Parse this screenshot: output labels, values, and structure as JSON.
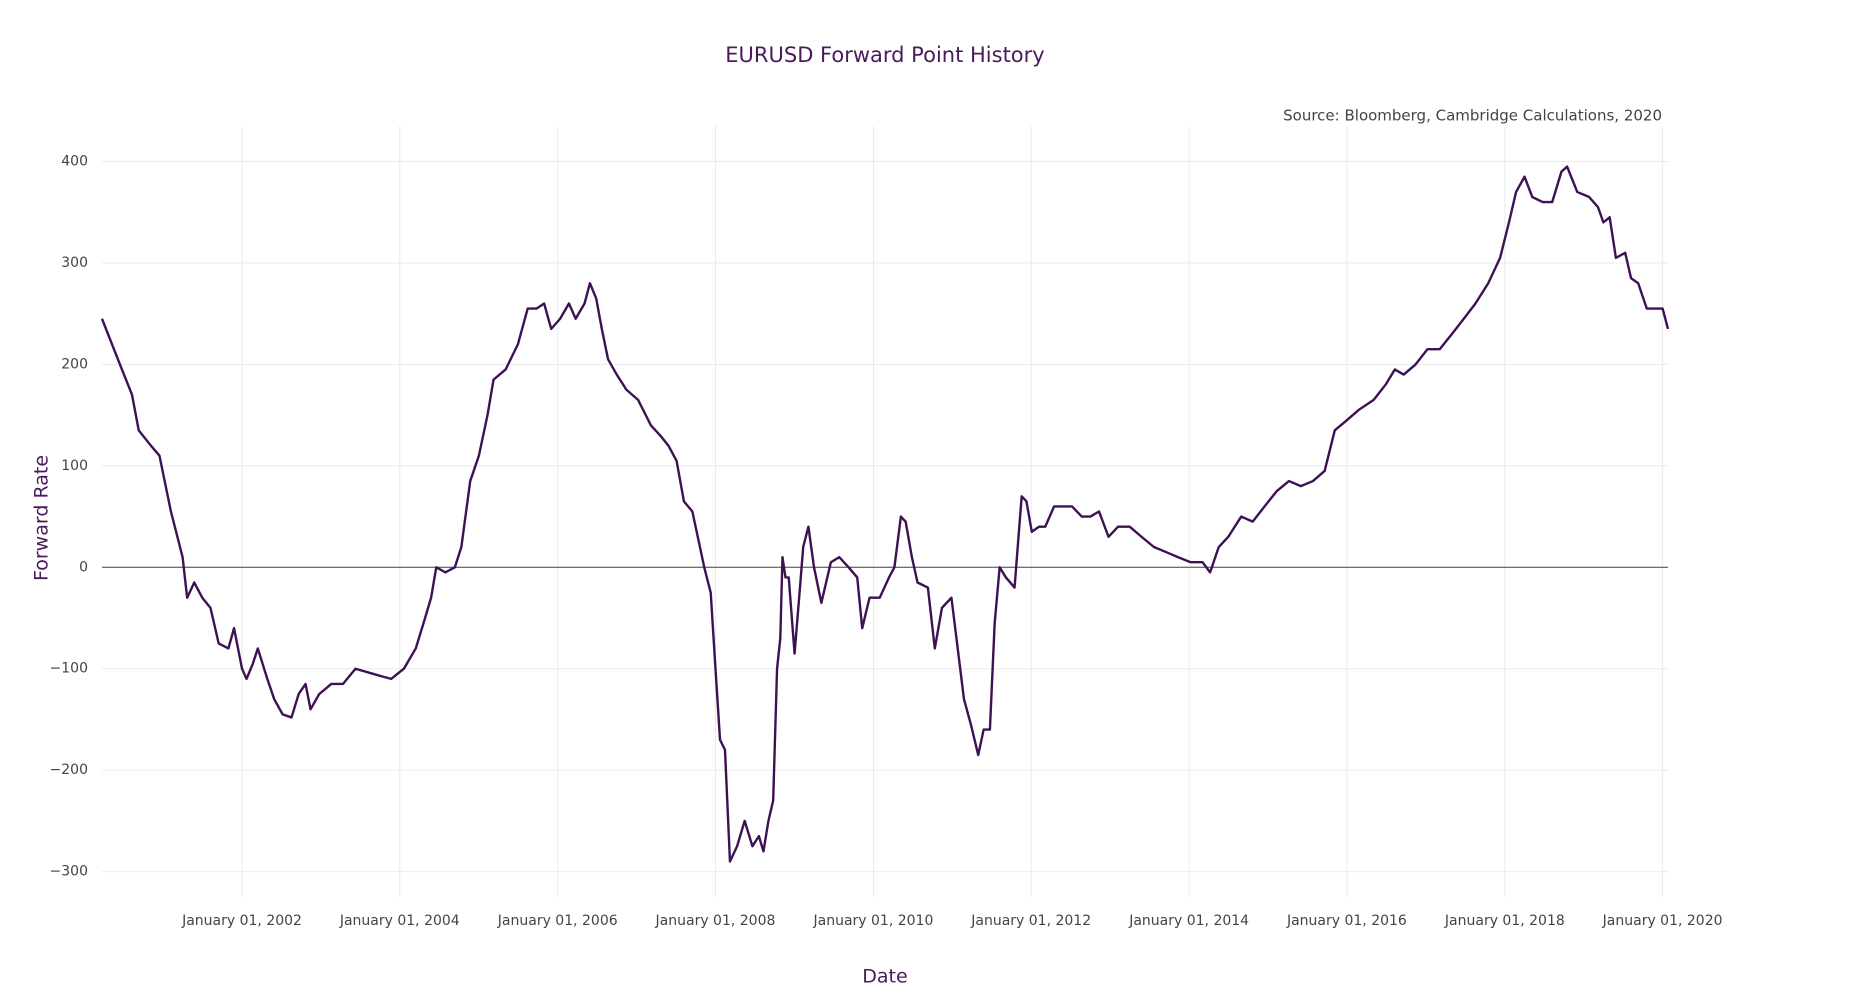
{
  "chart_data": {
    "type": "line",
    "title": "EURUSD Forward Point History",
    "annotation": "Source: Bloomberg, Cambridge Calculations, 2020",
    "x_label": "Date",
    "y_label": "Forward Rate",
    "grid": true,
    "zeroline": true,
    "xlim": [
      "2000-03-24",
      "2020-01-26"
    ],
    "xticks": [
      {
        "value": "2002-01-01",
        "label": "January 01, 2002"
      },
      {
        "value": "2004-01-01",
        "label": "January 01, 2004"
      },
      {
        "value": "2006-01-01",
        "label": "January 01, 2006"
      },
      {
        "value": "2008-01-01",
        "label": "January 01, 2008"
      },
      {
        "value": "2010-01-01",
        "label": "January 01, 2010"
      },
      {
        "value": "2012-01-01",
        "label": "January 01, 2012"
      },
      {
        "value": "2014-01-01",
        "label": "January 01, 2014"
      },
      {
        "value": "2016-01-01",
        "label": "January 01, 2016"
      },
      {
        "value": "2018-01-01",
        "label": "January 01, 2018"
      },
      {
        "value": "2020-01-01",
        "label": "January 01, 2020"
      }
    ],
    "ylim": [
      -325,
      435
    ],
    "yticks": [
      {
        "value": -300,
        "label": "−300"
      },
      {
        "value": -200,
        "label": "−200"
      },
      {
        "value": -100,
        "label": "−100"
      },
      0,
      100,
      200,
      300,
      400
    ],
    "x": [
      "2000-03-24",
      "2000-06-15",
      "2000-08-10",
      "2000-09-10",
      "2000-11-05",
      "2000-12-15",
      "2001-01-08",
      "2001-02-06",
      "2001-03-08",
      "2001-04-01",
      "2001-04-22",
      "2001-05-25",
      "2001-07-01",
      "2001-08-08",
      "2001-09-15",
      "2001-10-30",
      "2001-11-25",
      "2002-01-01",
      "2002-01-22",
      "2002-02-20",
      "2002-03-15",
      "2002-04-28",
      "2002-05-30",
      "2002-07-08",
      "2002-08-18",
      "2002-09-20",
      "2002-10-22",
      "2002-11-14",
      "2002-12-24",
      "2003-02-18",
      "2003-04-13",
      "2003-06-10",
      "2003-08-30",
      "2003-11-22",
      "2004-01-20",
      "2004-03-15",
      "2004-04-20",
      "2004-05-25",
      "2004-06-18",
      "2004-07-30",
      "2004-09-12",
      "2004-10-12",
      "2004-11-22",
      "2005-01-01",
      "2005-02-10",
      "2005-03-10",
      "2005-05-05",
      "2005-07-01",
      "2005-08-15",
      "2005-09-25",
      "2005-10-30",
      "2005-12-02",
      "2006-01-12",
      "2006-02-22",
      "2006-03-25",
      "2006-05-05",
      "2006-05-30",
      "2006-06-28",
      "2006-07-24",
      "2006-08-22",
      "2006-10-01",
      "2006-11-15",
      "2007-01-08",
      "2007-03-08",
      "2007-04-20",
      "2007-05-28",
      "2007-07-05",
      "2007-08-08",
      "2007-09-16",
      "2007-10-16",
      "2007-11-10",
      "2007-12-10",
      "2008-01-01",
      "2008-01-22",
      "2008-02-14",
      "2008-03-08",
      "2008-04-10",
      "2008-05-15",
      "2008-06-20",
      "2008-07-20",
      "2008-08-10",
      "2008-09-02",
      "2008-09-24",
      "2008-10-12",
      "2008-10-27",
      "2008-11-06",
      "2008-11-20",
      "2008-12-05",
      "2009-01-01",
      "2009-01-26",
      "2009-02-10",
      "2009-03-06",
      "2009-04-01",
      "2009-05-05",
      "2009-06-18",
      "2009-07-27",
      "2009-09-08",
      "2009-10-18",
      "2009-11-10",
      "2009-12-14",
      "2010-01-30",
      "2010-03-14",
      "2010-04-08",
      "2010-05-08",
      "2010-05-30",
      "2010-06-28",
      "2010-07-24",
      "2010-09-10",
      "2010-10-12",
      "2010-11-14",
      "2010-12-28",
      "2011-01-26",
      "2011-02-24",
      "2011-03-28",
      "2011-05-01",
      "2011-05-26",
      "2011-06-24",
      "2011-07-16",
      "2011-08-08",
      "2011-09-06",
      "2011-10-16",
      "2011-11-18",
      "2011-12-10",
      "2012-01-04",
      "2012-02-06",
      "2012-03-06",
      "2012-04-16",
      "2012-05-22",
      "2012-07-08",
      "2012-08-22",
      "2012-10-01",
      "2012-11-10",
      "2012-12-24",
      "2013-02-06",
      "2013-04-01",
      "2013-05-26",
      "2013-07-22",
      "2013-09-16",
      "2013-11-10",
      "2014-01-08",
      "2014-03-04",
      "2014-04-08",
      "2014-05-18",
      "2014-07-01",
      "2014-08-30",
      "2014-10-22",
      "2014-12-16",
      "2015-02-10",
      "2015-04-08",
      "2015-06-02",
      "2015-07-28",
      "2015-09-20",
      "2015-11-06",
      "2016-01-01",
      "2016-02-24",
      "2016-05-04",
      "2016-06-28",
      "2016-08-10",
      "2016-09-20",
      "2016-11-14",
      "2017-01-08",
      "2017-03-06",
      "2017-05-01",
      "2017-06-25",
      "2017-08-18",
      "2017-10-16",
      "2017-12-10",
      "2018-01-20",
      "2018-02-22",
      "2018-04-02",
      "2018-05-08",
      "2018-06-25",
      "2018-08-08",
      "2018-09-20",
      "2018-10-16",
      "2018-12-02",
      "2019-01-26",
      "2019-03-08",
      "2019-04-02",
      "2019-05-01",
      "2019-05-30",
      "2019-07-12",
      "2019-08-08",
      "2019-09-10",
      "2019-10-20",
      "2019-11-26",
      "2020-01-01",
      "2020-01-26"
    ],
    "series": [
      {
        "name": "EURUSD",
        "color": "#3d1152",
        "values": [
          245,
          200,
          170,
          135,
          120,
          110,
          85,
          55,
          30,
          10,
          -30,
          -15,
          -30,
          -40,
          -75,
          -80,
          -60,
          -100,
          -110,
          -95,
          -80,
          -110,
          -130,
          -145,
          -148,
          -125,
          -115,
          -140,
          -125,
          -115,
          -115,
          -100,
          -105,
          -110,
          -100,
          -80,
          -55,
          -30,
          0,
          -5,
          0,
          20,
          85,
          110,
          150,
          185,
          195,
          220,
          255,
          255,
          260,
          235,
          245,
          260,
          245,
          260,
          280,
          265,
          235,
          205,
          190,
          175,
          165,
          140,
          130,
          120,
          105,
          65,
          55,
          25,
          0,
          -25,
          -100,
          -170,
          -180,
          -290,
          -275,
          -250,
          -275,
          -265,
          -280,
          -250,
          -230,
          -100,
          -70,
          10,
          -10,
          -10,
          -85,
          -20,
          20,
          40,
          0,
          -35,
          5,
          10,
          0,
          -10,
          -60,
          -30,
          -30,
          -10,
          0,
          50,
          45,
          10,
          -15,
          -20,
          -80,
          -40,
          -30,
          -80,
          -130,
          -155,
          -185,
          -160,
          -160,
          -55,
          0,
          -10,
          -20,
          70,
          65,
          35,
          40,
          40,
          60,
          60,
          60,
          50,
          50,
          55,
          30,
          40,
          40,
          30,
          20,
          15,
          10,
          5,
          5,
          -5,
          20,
          30,
          50,
          45,
          60,
          75,
          85,
          80,
          85,
          95,
          135,
          145,
          155,
          165,
          180,
          195,
          190,
          200,
          215,
          215,
          230,
          245,
          260,
          280,
          305,
          340,
          370,
          385,
          365,
          360,
          360,
          390,
          395,
          370,
          365,
          355,
          340,
          345,
          305,
          310,
          285,
          280,
          255,
          255,
          255,
          235
        ]
      }
    ]
  }
}
